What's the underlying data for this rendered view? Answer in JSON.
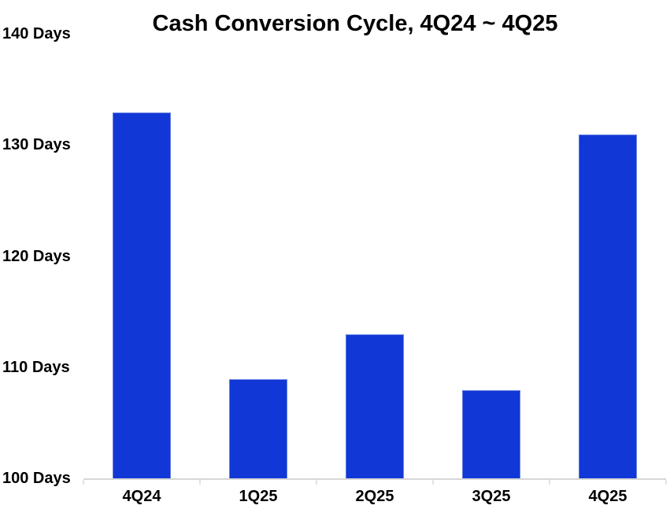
{
  "chart_data": {
    "type": "bar",
    "title": "Cash Conversion Cycle, 4Q24 ~ 4Q25",
    "categories": [
      "4Q24",
      "1Q25",
      "2Q25",
      "3Q25",
      "4Q25"
    ],
    "values": [
      133,
      109,
      113,
      108,
      131
    ],
    "unit": "Days",
    "xlabel": "",
    "ylabel": "",
    "ylim": [
      100,
      140
    ],
    "yticks": [
      100,
      110,
      120,
      130,
      140
    ],
    "ytick_labels": [
      "100 Days",
      "110 Days",
      "120 Days",
      "130 Days",
      "140 Days"
    ],
    "grid": false,
    "legend": false,
    "colors": {
      "bar": "#1138d6",
      "axis_line": "#d6d6d6",
      "tick_mark": "#e2e2e2",
      "text": "#000000",
      "background": "#ffffff"
    }
  }
}
